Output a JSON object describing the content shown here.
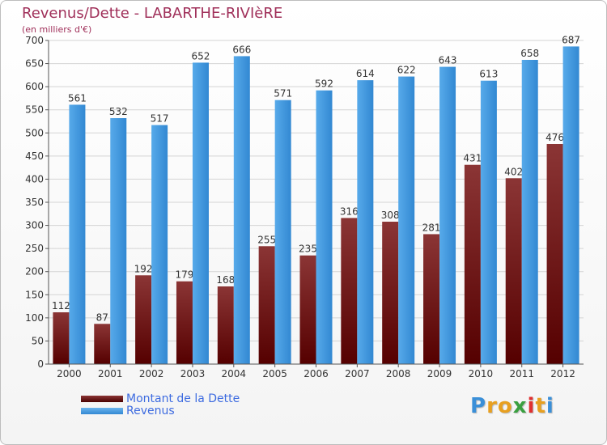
{
  "header": {
    "title": "Revenus/Dette - LABARTHE-RIVIèRE",
    "subtitle": "(en milliers d'€)"
  },
  "chart_data": {
    "type": "bar",
    "categories": [
      "2000",
      "2001",
      "2002",
      "2003",
      "2004",
      "2005",
      "2006",
      "2007",
      "2008",
      "2009",
      "2010",
      "2011",
      "2012"
    ],
    "series": [
      {
        "name": "Montant de la Dette",
        "color": "#6b1010",
        "values": [
          112,
          87,
          192,
          179,
          168,
          255,
          235,
          316,
          308,
          281,
          431,
          402,
          476
        ]
      },
      {
        "name": "Revenus",
        "color": "#3d95dc",
        "values": [
          561,
          532,
          517,
          652,
          666,
          571,
          592,
          614,
          622,
          643,
          613,
          658,
          687
        ]
      }
    ],
    "yticks": [
      0,
      50,
      100,
      150,
      200,
      250,
      300,
      350,
      400,
      450,
      500,
      550,
      600,
      650,
      700
    ],
    "ylim": [
      0,
      700
    ],
    "grid": true,
    "legend": "bottom-left"
  },
  "legend": {
    "items": [
      {
        "label": "Montant de la Dette",
        "color": "#6b1010"
      },
      {
        "label": "Revenus",
        "color": "#3d95dc"
      }
    ]
  },
  "logo": {
    "letters": [
      "P",
      "r",
      "o",
      "x",
      "i",
      "t",
      "i"
    ],
    "colors": [
      "#3a8fd8",
      "#e8a020",
      "#e8a020",
      "#3aa040",
      "#e03030",
      "#e8a020",
      "#3a8fd8"
    ]
  }
}
